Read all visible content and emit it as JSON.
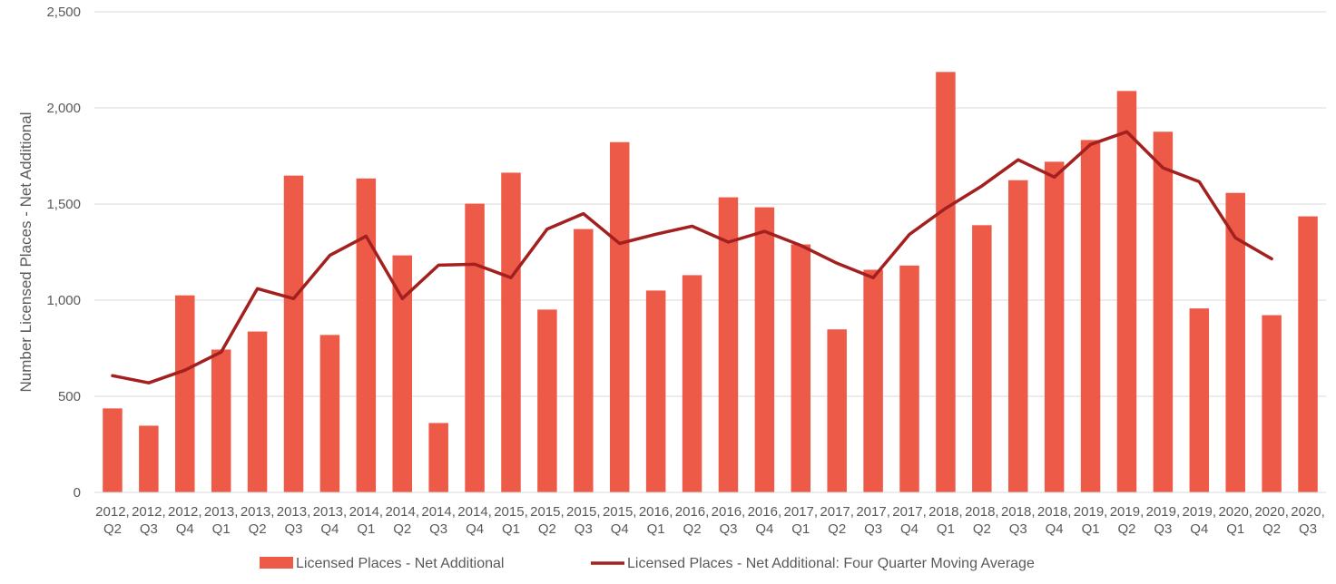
{
  "chart_data": {
    "type": "bar",
    "ylabel": "Number Licensed Places - Net Additional",
    "ylim": [
      0,
      2500
    ],
    "yticks": [
      0,
      500,
      1000,
      1500,
      2000,
      2500
    ],
    "ytick_labels": [
      "0",
      "500",
      "1,000",
      "1,500",
      "2,000",
      "2,500"
    ],
    "grid": true,
    "legend_position": "bottom",
    "categories": [
      [
        "2012,",
        "Q2"
      ],
      [
        "2012,",
        "Q3"
      ],
      [
        "2012,",
        "Q4"
      ],
      [
        "2013,",
        "Q1"
      ],
      [
        "2013,",
        "Q2"
      ],
      [
        "2013,",
        "Q3"
      ],
      [
        "2013,",
        "Q4"
      ],
      [
        "2014,",
        "Q1"
      ],
      [
        "2014,",
        "Q2"
      ],
      [
        "2014,",
        "Q3"
      ],
      [
        "2014,",
        "Q4"
      ],
      [
        "2015,",
        "Q1"
      ],
      [
        "2015,",
        "Q2"
      ],
      [
        "2015,",
        "Q3"
      ],
      [
        "2015,",
        "Q4"
      ],
      [
        "2016,",
        "Q1"
      ],
      [
        "2016,",
        "Q2"
      ],
      [
        "2016,",
        "Q3"
      ],
      [
        "2016,",
        "Q4"
      ],
      [
        "2017,",
        "Q1"
      ],
      [
        "2017,",
        "Q2"
      ],
      [
        "2017,",
        "Q3"
      ],
      [
        "2017,",
        "Q4"
      ],
      [
        "2018,",
        "Q1"
      ],
      [
        "2018,",
        "Q2"
      ],
      [
        "2018,",
        "Q3"
      ],
      [
        "2018,",
        "Q4"
      ],
      [
        "2019,",
        "Q1"
      ],
      [
        "2019,",
        "Q2"
      ],
      [
        "2019,",
        "Q3"
      ],
      [
        "2019,",
        "Q4"
      ],
      [
        "2020,",
        "Q1"
      ],
      [
        "2020,",
        "Q2"
      ],
      [
        "2020,",
        "Q3"
      ]
    ],
    "series": [
      {
        "name": "Licensed Places - Net Additional",
        "type": "bar",
        "color": "#ee5a48",
        "values": [
          437,
          347,
          1025,
          743,
          837,
          1648,
          819,
          1633,
          1233,
          361,
          1502,
          1663,
          951,
          1370,
          1822,
          1050,
          1130,
          1535,
          1483,
          1290,
          848,
          1158,
          1180,
          2187,
          1390,
          1624,
          1720,
          1833,
          2088,
          1876,
          957,
          1558,
          922,
          1436
        ]
      },
      {
        "name": "Licensed Places - Net Additional: Four Quarter Moving Average",
        "type": "line",
        "color": "#a3201f",
        "values": [
          607,
          570,
          636,
          730,
          1060,
          1008,
          1233,
          1333,
          1008,
          1182,
          1187,
          1117,
          1370,
          1450,
          1295,
          1343,
          1385,
          1302,
          1358,
          1285,
          1192,
          1117,
          1342,
          1478,
          1594,
          1730,
          1640,
          1810,
          1876,
          1688,
          1616,
          1324,
          1215,
          null
        ]
      }
    ]
  }
}
